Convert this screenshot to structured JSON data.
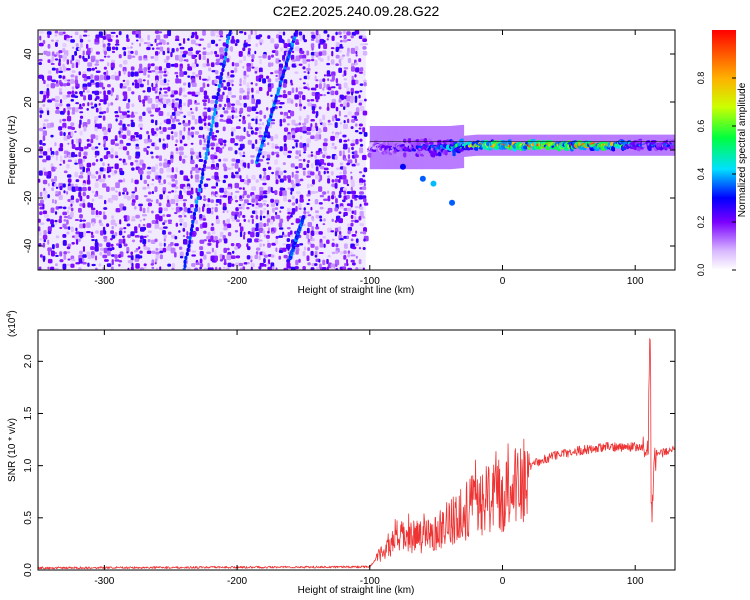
{
  "figure_title": "C2E2.2025.240.09.28.G22",
  "chart_data": [
    {
      "type": "heatmap",
      "title": "C2E2.2025.240.09.28.G22",
      "xlabel": "Height of straight line (km)",
      "ylabel": "Frequency (Hz)",
      "xlim": [
        -350,
        130
      ],
      "ylim": [
        -50,
        50
      ],
      "xticks": [
        -300,
        -200,
        -100,
        0,
        100
      ],
      "xtick_labels": [
        "-300",
        "-200",
        "-100",
        "0",
        "100"
      ],
      "yticks": [
        -40,
        -20,
        0,
        20,
        40
      ],
      "ytick_labels": [
        "-40",
        "-20",
        "0",
        "20",
        "40"
      ],
      "noise_region_x": [
        -350,
        -103
      ],
      "signal_trend": [
        {
          "x": -100,
          "y": 1,
          "amp": 0.2
        },
        {
          "x": -80,
          "y": 1,
          "amp": 0.25
        },
        {
          "x": -60,
          "y": 1,
          "amp": 0.3
        },
        {
          "x": -40,
          "y": 1,
          "amp": 0.4
        },
        {
          "x": -20,
          "y": 2,
          "amp": 0.75
        },
        {
          "x": 0,
          "y": 2,
          "amp": 0.8
        },
        {
          "x": 50,
          "y": 2,
          "amp": 0.85
        },
        {
          "x": 80,
          "y": 2,
          "amp": 0.85
        },
        {
          "x": 100,
          "y": 2,
          "amp": 0.35
        },
        {
          "x": 130,
          "y": 2,
          "amp": 0.35
        }
      ],
      "diagonal_traces": [
        {
          "x_start": -240,
          "y_start": -50,
          "x_end": -205,
          "y_end": 50
        },
        {
          "x_start": -185,
          "y_start": -5,
          "x_end": -155,
          "y_end": 50
        },
        {
          "x_start": -160,
          "y_start": -45,
          "x_end": -150,
          "y_end": -28
        }
      ],
      "colorbar": {
        "label": "Normalized spectral amplitude",
        "range": [
          0.0,
          1.0
        ],
        "ticks": [
          0.0,
          0.2,
          0.4,
          0.6,
          0.8
        ],
        "tick_labels": [
          "0.0",
          "0.2",
          "0.4",
          "0.6",
          "0.8"
        ]
      }
    },
    {
      "type": "line",
      "xlabel": "Height of straight line (km)",
      "ylabel": "SNR (10 * v/v)",
      "y_multiplier": "(x10",
      "y_multiplier_exp": "4",
      "y_multiplier_close": ")",
      "xlim": [
        -350,
        130
      ],
      "ylim": [
        0,
        2.3
      ],
      "xticks": [
        -300,
        -200,
        -100,
        0,
        100
      ],
      "xtick_labels": [
        "-300",
        "-200",
        "-100",
        "0",
        "100"
      ],
      "yticks": [
        0.0,
        0.5,
        1.0,
        1.5,
        2.0
      ],
      "ytick_labels": [
        "0.0",
        "0.5",
        "1.0",
        "1.5",
        "2.0"
      ],
      "series": [
        {
          "name": "SNR",
          "color": "#ee3333",
          "envelope": [
            {
              "x": -350,
              "y": 0.02
            },
            {
              "x": -100,
              "y": 0.03
            },
            {
              "x": -90,
              "y": 0.2
            },
            {
              "x": -80,
              "y": 0.35
            },
            {
              "x": -60,
              "y": 0.35
            },
            {
              "x": -40,
              "y": 0.5
            },
            {
              "x": -20,
              "y": 0.7
            },
            {
              "x": 0,
              "y": 0.8
            },
            {
              "x": 20,
              "y": 1.0
            },
            {
              "x": 40,
              "y": 1.1
            },
            {
              "x": 60,
              "y": 1.15
            },
            {
              "x": 80,
              "y": 1.18
            },
            {
              "x": 100,
              "y": 1.18
            },
            {
              "x": 108,
              "y": 1.15
            },
            {
              "x": 112,
              "y": 1.3
            },
            {
              "x": 115,
              "y": 1.1
            },
            {
              "x": 130,
              "y": 1.17
            }
          ]
        }
      ]
    }
  ]
}
